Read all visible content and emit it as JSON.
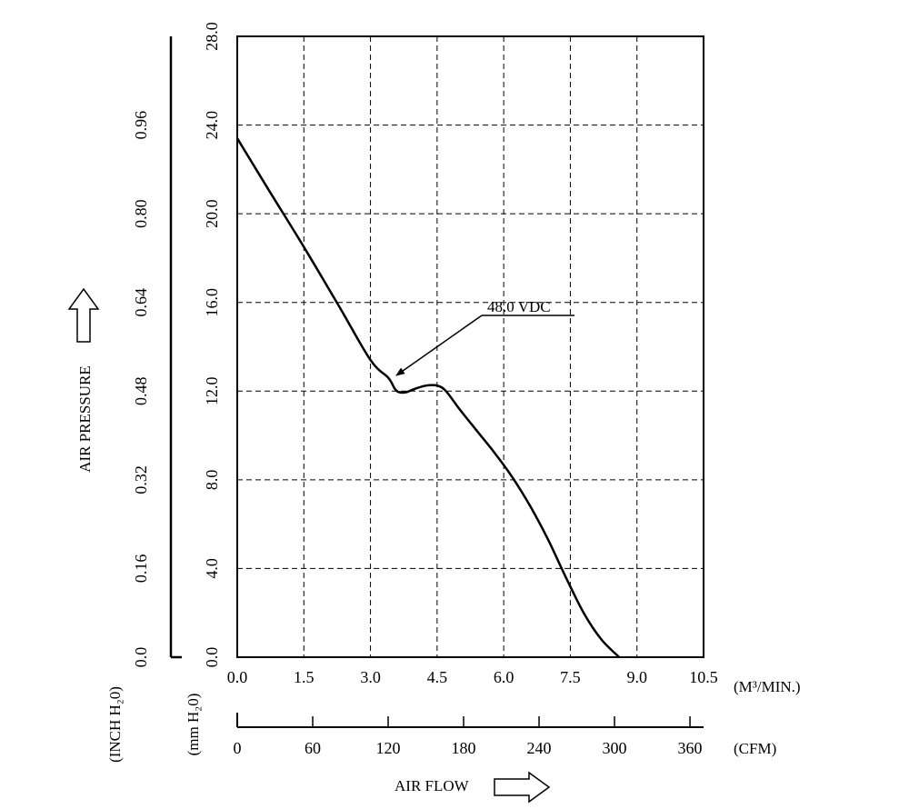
{
  "chart_data": {
    "type": "line",
    "title": "",
    "xlabel": "AIR FLOW",
    "ylabel": "AIR PRESSURE",
    "x_unit_primary": "(M³/MIN.)",
    "x_unit_secondary": "(CFM)",
    "y_unit_primary": "(mm H₂0)",
    "y_unit_secondary": "(INCH H₂0)",
    "xlim": [
      0,
      10.5
    ],
    "ylim": [
      0,
      28
    ],
    "grid": true,
    "x_ticks": [
      "0.0",
      "1.5",
      "3.0",
      "4.5",
      "6.0",
      "7.5",
      "9.0",
      "10.5"
    ],
    "y_ticks": [
      "0.0",
      "4.0",
      "8.0",
      "12.0",
      "16.0",
      "20.0",
      "24.0",
      "28.0"
    ],
    "cfm_ticks": [
      "0",
      "60",
      "120",
      "180",
      "240",
      "300",
      "360"
    ],
    "inch_ticks": [
      "0.0",
      "0.16",
      "0.32",
      "0.48",
      "0.64",
      "0.80",
      "0.96"
    ],
    "annotation": "48.0 VDC",
    "series": [
      {
        "name": "48.0 VDC",
        "x": [
          0.0,
          0.7,
          1.5,
          2.3,
          3.0,
          3.4,
          3.55,
          3.65,
          3.8,
          4.0,
          4.25,
          4.5,
          4.7,
          5.0,
          5.4,
          5.8,
          6.2,
          6.6,
          7.0,
          7.4,
          7.8,
          8.2,
          8.6
        ],
        "y": [
          23.4,
          21.1,
          18.5,
          15.8,
          13.4,
          12.6,
          12.1,
          11.95,
          11.95,
          12.1,
          12.25,
          12.25,
          12.0,
          11.2,
          10.2,
          9.2,
          8.1,
          6.8,
          5.3,
          3.6,
          2.0,
          0.8,
          0.0
        ]
      }
    ]
  }
}
